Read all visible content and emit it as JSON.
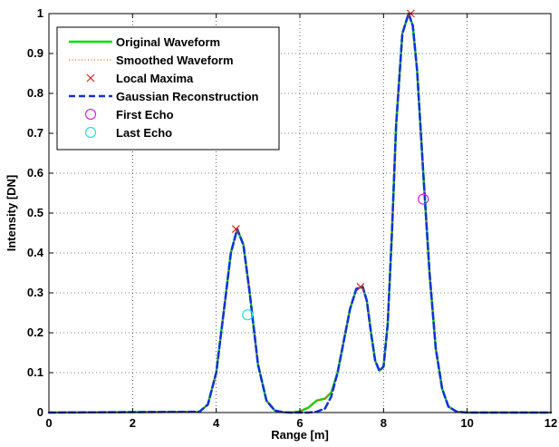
{
  "chart_data": {
    "type": "line",
    "xlabel": "Range [m]",
    "ylabel": "Intensity [DN]",
    "xlim": [
      0,
      12
    ],
    "ylim": [
      0,
      1
    ],
    "xticks": [
      "0",
      "2",
      "4",
      "6",
      "8",
      "10",
      "12"
    ],
    "yticks": [
      "0",
      "0.1",
      "0.2",
      "0.3",
      "0.4",
      "0.5",
      "0.6",
      "0.7",
      "0.8",
      "0.9",
      "1"
    ],
    "grid": "dotted",
    "legend_position": "top-left",
    "series": [
      {
        "name": "Original Waveform",
        "style": "solid",
        "color": "#00e000",
        "x": [
          0,
          3.6,
          3.8,
          4.0,
          4.2,
          4.35,
          4.5,
          4.65,
          4.8,
          5.0,
          5.2,
          5.4,
          5.6,
          5.8,
          6.0,
          6.2,
          6.4,
          6.6,
          6.75,
          6.9,
          7.05,
          7.2,
          7.35,
          7.5,
          7.6,
          7.7,
          7.8,
          7.9,
          8.0,
          8.1,
          8.2,
          8.3,
          8.45,
          8.6,
          8.7,
          8.8,
          8.95,
          9.1,
          9.25,
          9.4,
          9.55,
          9.75,
          10.0,
          12
        ],
        "y": [
          0,
          0.002,
          0.02,
          0.1,
          0.27,
          0.4,
          0.46,
          0.42,
          0.3,
          0.12,
          0.03,
          0.005,
          0.001,
          0,
          0.003,
          0.012,
          0.03,
          0.035,
          0.05,
          0.1,
          0.18,
          0.26,
          0.31,
          0.315,
          0.28,
          0.2,
          0.13,
          0.105,
          0.115,
          0.22,
          0.45,
          0.72,
          0.95,
          1.0,
          0.97,
          0.86,
          0.6,
          0.35,
          0.16,
          0.06,
          0.015,
          0.002,
          0,
          0
        ]
      },
      {
        "name": "Smoothed Waveform",
        "style": "dotted",
        "color": "#e06020",
        "x": [
          0,
          3.6,
          3.8,
          4.0,
          4.2,
          4.35,
          4.5,
          4.65,
          4.8,
          5.0,
          5.2,
          5.4,
          5.6,
          5.8,
          6.0,
          6.2,
          6.4,
          6.6,
          6.75,
          6.9,
          7.05,
          7.2,
          7.35,
          7.5,
          7.6,
          7.7,
          7.8,
          7.9,
          8.0,
          8.1,
          8.2,
          8.3,
          8.45,
          8.6,
          8.7,
          8.8,
          8.95,
          9.1,
          9.25,
          9.4,
          9.55,
          9.75,
          10.0,
          12
        ],
        "y": [
          0,
          0.002,
          0.02,
          0.1,
          0.27,
          0.4,
          0.46,
          0.42,
          0.3,
          0.12,
          0.03,
          0.005,
          0.001,
          0,
          0.003,
          0.012,
          0.03,
          0.035,
          0.05,
          0.1,
          0.18,
          0.26,
          0.31,
          0.315,
          0.28,
          0.2,
          0.13,
          0.105,
          0.115,
          0.22,
          0.45,
          0.72,
          0.95,
          1.0,
          0.97,
          0.86,
          0.6,
          0.35,
          0.16,
          0.06,
          0.015,
          0.002,
          0,
          0
        ]
      },
      {
        "name": "Gaussian Reconstruction",
        "style": "dashed",
        "color": "#1030e0",
        "x": [
          0,
          3.6,
          3.8,
          4.0,
          4.2,
          4.35,
          4.5,
          4.65,
          4.8,
          5.0,
          5.2,
          5.4,
          5.6,
          5.8,
          6.0,
          6.2,
          6.4,
          6.6,
          6.75,
          6.9,
          7.05,
          7.2,
          7.35,
          7.5,
          7.6,
          7.7,
          7.8,
          7.9,
          8.0,
          8.1,
          8.2,
          8.3,
          8.45,
          8.6,
          8.7,
          8.8,
          8.95,
          9.1,
          9.25,
          9.4,
          9.55,
          9.75,
          10.0,
          12
        ],
        "y": [
          0,
          0.002,
          0.02,
          0.1,
          0.27,
          0.4,
          0.46,
          0.42,
          0.3,
          0.12,
          0.03,
          0.005,
          0.001,
          0,
          0,
          0,
          0.002,
          0.01,
          0.04,
          0.1,
          0.18,
          0.26,
          0.31,
          0.315,
          0.28,
          0.2,
          0.13,
          0.105,
          0.115,
          0.22,
          0.45,
          0.72,
          0.95,
          1.0,
          0.97,
          0.86,
          0.6,
          0.35,
          0.16,
          0.06,
          0.015,
          0.002,
          0,
          0
        ]
      }
    ],
    "markers": [
      {
        "name": "Local Maxima",
        "shape": "x",
        "color": "#e02020",
        "points": [
          [
            4.47,
            0.46
          ],
          [
            7.45,
            0.315
          ],
          [
            8.65,
            1.0
          ]
        ]
      },
      {
        "name": "First Echo",
        "shape": "circle",
        "color": "#e020e0",
        "points": [
          [
            8.95,
            0.535
          ]
        ]
      },
      {
        "name": "Last Echo",
        "shape": "circle",
        "color": "#20e0f0",
        "points": [
          [
            4.75,
            0.245
          ]
        ]
      }
    ],
    "legend": [
      {
        "label": "Original Waveform",
        "style": "solid",
        "color": "#00e000"
      },
      {
        "label": "Smoothed Waveform",
        "style": "dotted",
        "color": "#e06020"
      },
      {
        "label": "Local Maxima",
        "style": "x",
        "color": "#e02020"
      },
      {
        "label": "Gaussian Reconstruction",
        "style": "dashed",
        "color": "#1030e0"
      },
      {
        "label": "First Echo",
        "style": "circle",
        "color": "#e020e0"
      },
      {
        "label": "Last Echo",
        "style": "circle",
        "color": "#20e0f0"
      }
    ]
  }
}
